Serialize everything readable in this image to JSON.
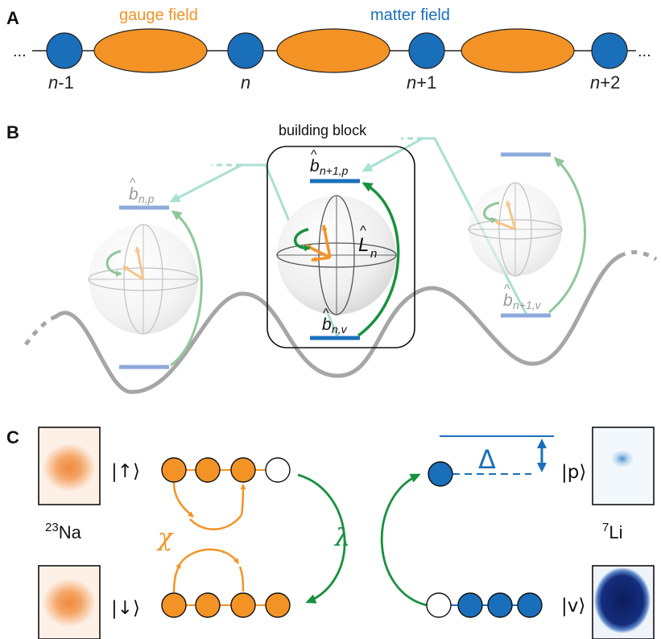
{
  "panels": {
    "a": {
      "letter": "A",
      "gauge_label": "gauge field",
      "matter_label": "matter field",
      "ellipsis": "...",
      "sites": [
        {
          "pre": "n",
          "post": "-1"
        },
        {
          "pre": "n",
          "post": ""
        },
        {
          "pre": "n",
          "post": "+1"
        },
        {
          "pre": "n",
          "post": "+2"
        }
      ]
    },
    "b": {
      "letter": "B",
      "block_label": "building block",
      "operators": {
        "b": "b",
        "hat": "^",
        "L": "L",
        "n": "n",
        "sub_np": "n,p",
        "sub_nv": "n,v",
        "sub_n1p": "n+1,p",
        "sub_n1v": "n+1,v"
      }
    },
    "c": {
      "letter": "C",
      "na_mass": "23",
      "na_symbol": "Na",
      "li_mass": "7",
      "li_symbol": "Li",
      "ket_up": "|↑⟩",
      "ket_down": "|↓⟩",
      "ket_p": "|p⟩",
      "ket_v": "|v⟩",
      "chi": "χ",
      "lambda": "λ",
      "delta": "Δ"
    }
  },
  "colors": {
    "gauge": "#f39325",
    "matter": "#1a6fbb",
    "matter_light": "#8ea9db",
    "coupling": "#18913e",
    "coupling_light": "#8fc79a",
    "tunnel": "#a8e0d3",
    "potential": "#a6a6a6",
    "text_blue": "#1a6fbb",
    "text_orange": "#f39325"
  }
}
